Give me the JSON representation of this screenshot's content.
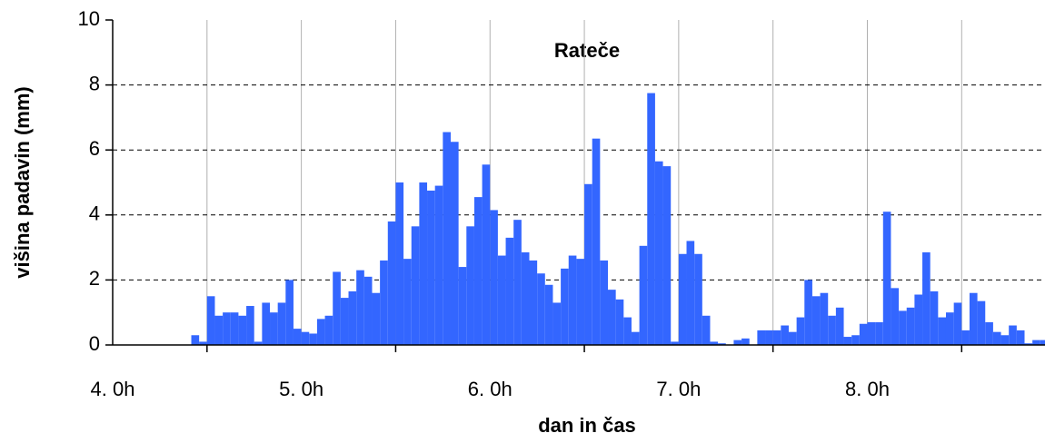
{
  "chart_data": {
    "type": "bar",
    "title": "Rateče",
    "x_label": "dan in čas",
    "y_label": "višina padavin (mm)",
    "color": "#3366ff",
    "grid": true,
    "x": [
      10,
      11,
      12,
      13,
      14,
      15,
      16,
      17,
      18,
      19,
      20,
      21,
      22,
      23,
      24,
      25,
      26,
      27,
      28,
      29,
      30,
      31,
      32,
      33,
      34,
      35,
      36,
      37,
      38,
      39,
      40,
      41,
      42,
      43,
      44,
      45,
      46,
      47,
      48,
      49,
      50,
      51,
      52,
      53,
      54,
      55,
      56,
      57,
      58,
      59,
      60,
      61,
      62,
      63,
      64,
      65,
      66,
      67,
      68,
      69,
      70,
      71,
      72,
      73,
      74,
      75,
      76,
      77,
      78,
      79,
      80,
      81,
      82,
      83,
      84,
      85,
      86,
      87,
      88,
      89,
      90,
      91,
      92,
      93,
      94,
      95,
      96,
      97,
      98,
      99,
      100,
      101,
      102,
      103,
      104,
      105,
      106,
      107,
      108,
      109,
      110,
      111,
      112,
      113,
      114,
      115,
      116,
      117,
      118
    ],
    "values": [
      0.3,
      0.1,
      1.5,
      0.9,
      1.0,
      1.0,
      0.9,
      1.2,
      0.1,
      1.3,
      1.0,
      1.3,
      2.0,
      0.5,
      0.4,
      0.35,
      0.8,
      0.9,
      2.25,
      1.45,
      1.65,
      2.3,
      2.1,
      1.6,
      2.6,
      3.8,
      5.0,
      2.65,
      3.65,
      5.0,
      4.75,
      4.9,
      6.55,
      6.25,
      2.4,
      3.65,
      4.55,
      5.55,
      4.15,
      2.75,
      3.3,
      3.85,
      2.85,
      2.6,
      2.2,
      1.85,
      1.3,
      2.35,
      2.75,
      2.65,
      4.95,
      6.35,
      2.6,
      1.7,
      1.4,
      0.85,
      0.4,
      3.05,
      7.75,
      5.65,
      5.5,
      0.1,
      2.8,
      3.2,
      2.8,
      0.9,
      0.1,
      0.05,
      0.0,
      0.15,
      0.2,
      0.0,
      0.45,
      0.45,
      0.45,
      0.6,
      0.4,
      0.85,
      2.0,
      1.5,
      1.6,
      0.9,
      1.15,
      0.25,
      0.3,
      0.65,
      0.7,
      0.7,
      4.1,
      1.75,
      1.05,
      1.15,
      1.55,
      2.85,
      1.65,
      0.85,
      1.0,
      1.3,
      0.45,
      1.6,
      1.35,
      0.7,
      0.4,
      0.3,
      0.6,
      0.45,
      0.05,
      0.15,
      0.15
    ],
    "xlim": [
      0,
      118.6
    ],
    "xticks": [
      {
        "value": 0,
        "label": "4. 0h"
      },
      {
        "value": 24,
        "label": "5. 0h"
      },
      {
        "value": 48,
        "label": "6. 0h"
      },
      {
        "value": 72,
        "label": "7. 0h"
      },
      {
        "value": 96,
        "label": "8. 0h"
      }
    ],
    "xminor": [
      12,
      36,
      60,
      84,
      108
    ],
    "ylim": [
      0,
      10
    ],
    "yticks": [
      0,
      2,
      4,
      6,
      8,
      10
    ]
  }
}
